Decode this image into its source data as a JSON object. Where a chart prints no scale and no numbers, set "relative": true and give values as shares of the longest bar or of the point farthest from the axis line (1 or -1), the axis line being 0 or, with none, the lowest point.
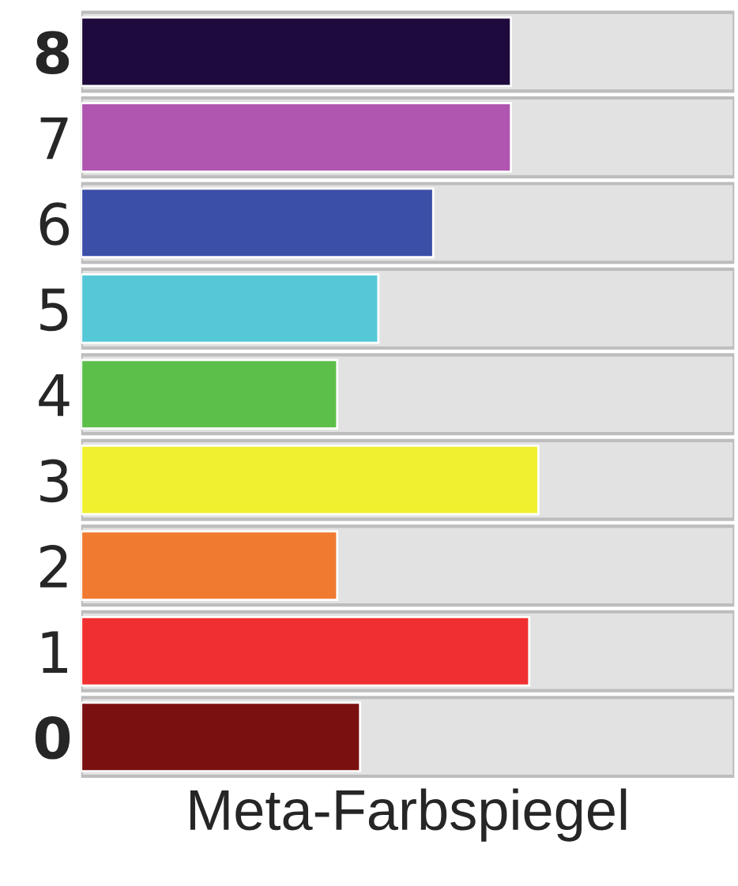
{
  "chart_data": {
    "type": "bar",
    "orientation": "horizontal",
    "relative": true,
    "xlabel": "Meta-Farbspiegel",
    "categories": [
      "8",
      "7",
      "6",
      "5",
      "4",
      "3",
      "2",
      "1",
      "0"
    ],
    "values": [
      0.94,
      0.94,
      0.77,
      0.65,
      0.56,
      1,
      0.56,
      0.98,
      0.61
    ],
    "colors": [
      "#1e0a3c",
      "#b055b0",
      "#3b4fa8",
      "#55c8d8",
      "#5cbf4a",
      "#f0f030",
      "#f07a30",
      "#f03030",
      "#7a1010"
    ],
    "grid": false,
    "legend": false
  }
}
